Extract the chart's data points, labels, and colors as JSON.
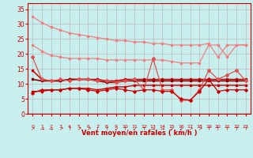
{
  "x": [
    0,
    1,
    2,
    3,
    4,
    5,
    6,
    7,
    8,
    9,
    10,
    11,
    12,
    13,
    14,
    15,
    16,
    17,
    18,
    19,
    20,
    21,
    22,
    23
  ],
  "line1": [
    32.5,
    30.5,
    29.0,
    28.0,
    27.0,
    26.5,
    26.0,
    25.5,
    25.0,
    24.5,
    24.5,
    24.0,
    24.0,
    23.5,
    23.5,
    23.0,
    23.0,
    23.0,
    23.0,
    23.5,
    19.0,
    23.0,
    23.0,
    23.0
  ],
  "line2": [
    23.0,
    21.0,
    19.5,
    19.0,
    18.5,
    18.5,
    18.5,
    18.5,
    18.0,
    18.0,
    18.0,
    18.0,
    18.0,
    18.0,
    18.0,
    17.5,
    17.0,
    17.0,
    17.0,
    23.0,
    23.0,
    19.0,
    23.0,
    23.0
  ],
  "line3": [
    14.5,
    11.5,
    11.0,
    11.0,
    11.5,
    11.5,
    11.5,
    11.5,
    11.0,
    11.0,
    11.5,
    11.5,
    11.5,
    11.5,
    11.5,
    11.5,
    11.5,
    11.5,
    11.5,
    11.5,
    11.5,
    11.5,
    11.5,
    11.5
  ],
  "line4": [
    7.5,
    7.5,
    8.0,
    8.0,
    8.5,
    8.5,
    8.5,
    8.0,
    8.5,
    9.0,
    9.0,
    9.5,
    9.5,
    9.5,
    9.5,
    9.5,
    9.5,
    9.5,
    9.5,
    9.5,
    9.5,
    9.5,
    9.5,
    9.5
  ],
  "line5": [
    19.0,
    11.5,
    11.0,
    11.5,
    11.0,
    11.5,
    11.5,
    11.0,
    11.0,
    10.5,
    11.0,
    11.5,
    8.0,
    18.5,
    8.0,
    8.0,
    4.5,
    4.5,
    8.0,
    14.5,
    11.5,
    13.0,
    14.5,
    11.0
  ],
  "line6": [
    7.0,
    8.0,
    8.0,
    8.0,
    8.5,
    8.5,
    8.0,
    7.5,
    8.0,
    8.5,
    8.0,
    7.5,
    8.0,
    8.0,
    7.5,
    7.5,
    5.0,
    4.5,
    7.5,
    11.5,
    7.5,
    8.0,
    8.0,
    8.0
  ],
  "line7": [
    11.5,
    11.0,
    11.0,
    11.0,
    11.5,
    11.5,
    11.5,
    11.0,
    10.5,
    10.5,
    11.0,
    11.0,
    11.0,
    11.0,
    11.0,
    11.0,
    11.0,
    11.0,
    11.0,
    11.0,
    11.0,
    11.0,
    11.0,
    11.0
  ],
  "color_light": "#F08080",
  "color_mid": "#E05050",
  "color_dark": "#CC0000",
  "color_darkest": "#880000",
  "bg_color": "#C8EEEE",
  "grid_color": "#BBBBBB",
  "xlabel": "Vent moyen/en rafales ( km/h )",
  "ylim": [
    0,
    37
  ],
  "xlim": [
    -0.5,
    23.5
  ],
  "yticks": [
    0,
    5,
    10,
    15,
    20,
    25,
    30,
    35
  ],
  "xticks": [
    0,
    1,
    2,
    3,
    4,
    5,
    6,
    7,
    8,
    9,
    10,
    11,
    12,
    13,
    14,
    15,
    16,
    17,
    18,
    19,
    20,
    21,
    22,
    23
  ],
  "arrows": [
    "↗",
    "→",
    "→",
    "↗",
    "↑",
    "↗",
    "↗",
    "↑",
    "↑",
    "↙",
    "↑",
    "↙",
    "↑",
    "→",
    "→",
    "↙",
    "↙",
    "↗",
    "↗",
    "↑",
    "↑",
    "↑",
    "↑",
    "↑"
  ]
}
